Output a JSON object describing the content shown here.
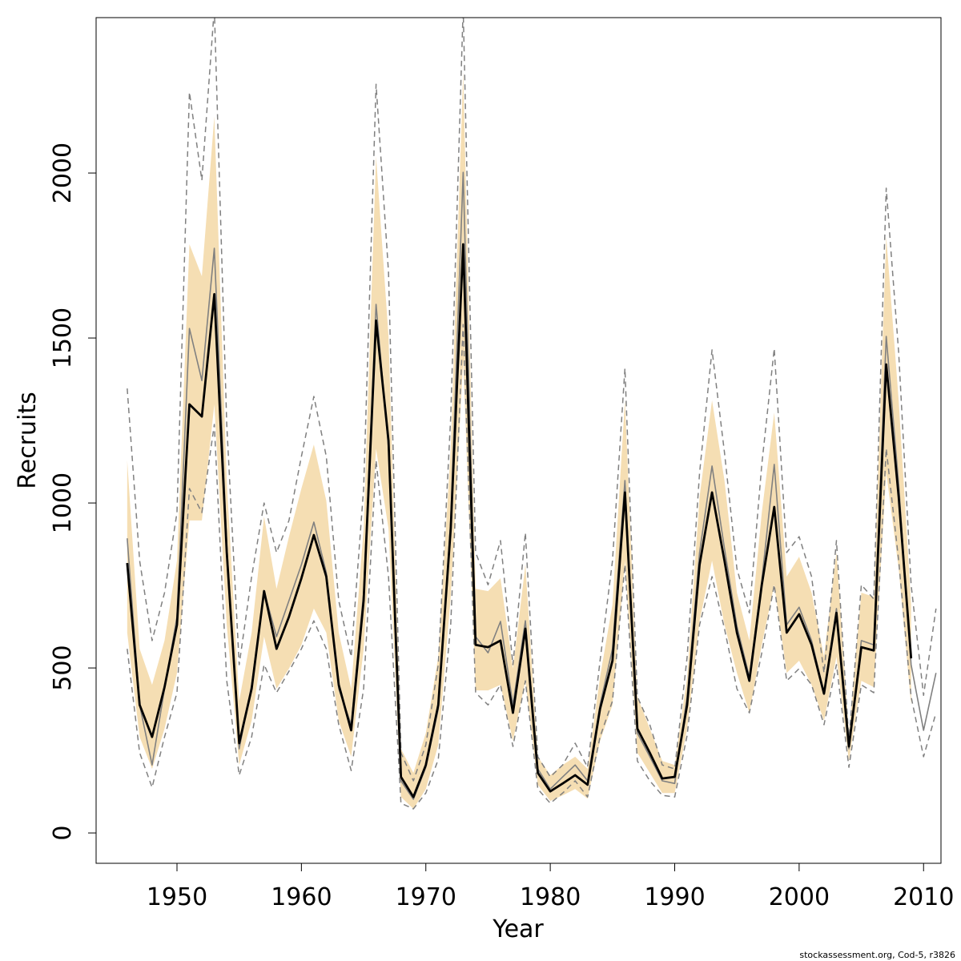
{
  "chart_data": {
    "type": "line",
    "xlabel": "Year",
    "ylabel": "Recruits",
    "footnote": "stockassessment.org, Cod-5, r3826",
    "xlim": [
      1943.5,
      2011.4
    ],
    "xticks": [
      1950,
      1960,
      1970,
      1980,
      1990,
      2000,
      2010
    ],
    "ylim": [
      -92,
      2471
    ],
    "yticks": [
      0,
      500,
      1000,
      1500,
      2000
    ],
    "x": [
      1946,
      1947,
      1948,
      1949,
      1950,
      1951,
      1952,
      1953,
      1954,
      1955,
      1956,
      1957,
      1958,
      1959,
      1960,
      1961,
      1962,
      1963,
      1964,
      1965,
      1966,
      1967,
      1968,
      1969,
      1970,
      1971,
      1972,
      1973,
      1974,
      1975,
      1976,
      1977,
      1978,
      1979,
      1980,
      1981,
      1982,
      1983,
      1984,
      1985,
      1986,
      1987,
      1988,
      1989,
      1990,
      1991,
      1992,
      1993,
      1994,
      1995,
      1996,
      1997,
      1998,
      1999,
      2000,
      2001,
      2002,
      2003,
      2004,
      2005,
      2006,
      2007,
      2008,
      2009,
      2010,
      2011
    ],
    "band": {
      "color": "#f5deb3",
      "upper": [
        1129,
        558,
        449,
        583,
        825,
        1784,
        1687,
        2172,
        1068,
        400,
        607,
        959,
        740,
        898,
        1044,
        1177,
        1007,
        607,
        437,
        922,
        2051,
        1505,
        255,
        182,
        303,
        534,
        1165,
        2306,
        740,
        733,
        772,
        498,
        813,
        231,
        175,
        206,
        231,
        194,
        473,
        692,
        1311,
        413,
        316,
        218,
        206,
        473,
        1019,
        1311,
        1068,
        728,
        583,
        971,
        1274,
        777,
        837,
        728,
        534,
        850,
        303,
        728,
        716,
        1808,
        1311,
        692,
        null,
        null
      ],
      "lower": [
        607,
        291,
        194,
        316,
        485,
        947,
        947,
        1299,
        631,
        206,
        340,
        595,
        437,
        498,
        570,
        680,
        607,
        340,
        231,
        558,
        1165,
        922,
        109,
        73,
        133,
        267,
        716,
        1432,
        432,
        432,
        449,
        279,
        461,
        146,
        97,
        114,
        133,
        104,
        279,
        388,
        825,
        243,
        182,
        121,
        121,
        316,
        643,
        825,
        631,
        485,
        364,
        570,
        752,
        485,
        522,
        449,
        340,
        534,
        218,
        461,
        442,
        1092,
        801,
        388,
        null,
        null
      ]
    },
    "series": [
      {
        "color": "#808080",
        "dashed": true,
        "values": [
          1347,
          825,
          583,
          728,
          971,
          2245,
          1978,
          2500,
          1238,
          510,
          777,
          1000,
          850,
          947,
          1141,
          1323,
          1141,
          704,
          534,
          1044,
          2269,
          1699,
          243,
          158,
          267,
          510,
          1262,
          2500,
          850,
          752,
          886,
          510,
          910,
          231,
          170,
          206,
          272,
          199,
          522,
          825,
          1408,
          413,
          328,
          206,
          194,
          534,
          1092,
          1464,
          1153,
          801,
          667,
          1117,
          1468,
          850,
          898,
          777,
          485,
          886,
          279,
          752,
          709,
          1954,
          1456,
          752,
          417,
          680
        ]
      },
      {
        "color": "#808080",
        "dashed": true,
        "values": [
          558,
          243,
          138,
          291,
          425,
          1044,
          971,
          1238,
          461,
          175,
          291,
          510,
          425,
          490,
          558,
          643,
          558,
          328,
          189,
          437,
          1129,
          777,
          90,
          73,
          121,
          223,
          631,
          1541,
          425,
          388,
          449,
          262,
          461,
          133,
          90,
          121,
          158,
          109,
          291,
          400,
          813,
          218,
          158,
          114,
          109,
          296,
          631,
          777,
          619,
          437,
          364,
          546,
          752,
          461,
          498,
          449,
          328,
          510,
          199,
          449,
          425,
          1165,
          825,
          413,
          231,
          364
        ]
      },
      {
        "color": "#808080",
        "dashed": false,
        "values": [
          893,
          388,
          206,
          437,
          655,
          1529,
          1371,
          1772,
          874,
          255,
          449,
          733,
          595,
          704,
          813,
          942,
          789,
          437,
          328,
          728,
          1602,
          1165,
          158,
          102,
          199,
          376,
          947,
          2002,
          595,
          546,
          641,
          388,
          643,
          194,
          133,
          170,
          206,
          158,
          388,
          558,
          1068,
          303,
          231,
          158,
          150,
          413,
          850,
          1112,
          862,
          626,
          473,
          765,
          1117,
          631,
          684,
          583,
          425,
          680,
          255,
          583,
          570,
          1505,
          1056,
          510,
          311,
          485
        ]
      },
      {
        "color": "#000000",
        "dashed": false,
        "values": [
          818,
          388,
          291,
          442,
          631,
          1299,
          1262,
          1633,
          850,
          272,
          437,
          733,
          558,
          655,
          772,
          903,
          777,
          449,
          311,
          704,
          1553,
          1189,
          170,
          109,
          206,
          388,
          922,
          1784,
          570,
          563,
          583,
          364,
          619,
          182,
          126,
          150,
          175,
          146,
          376,
          522,
          1032,
          316,
          243,
          165,
          170,
          388,
          813,
          1032,
          825,
          607,
          461,
          752,
          988,
          607,
          663,
          570,
          422,
          667,
          262,
          563,
          553,
          1420,
          1019,
          529,
          null,
          null
        ]
      }
    ]
  }
}
